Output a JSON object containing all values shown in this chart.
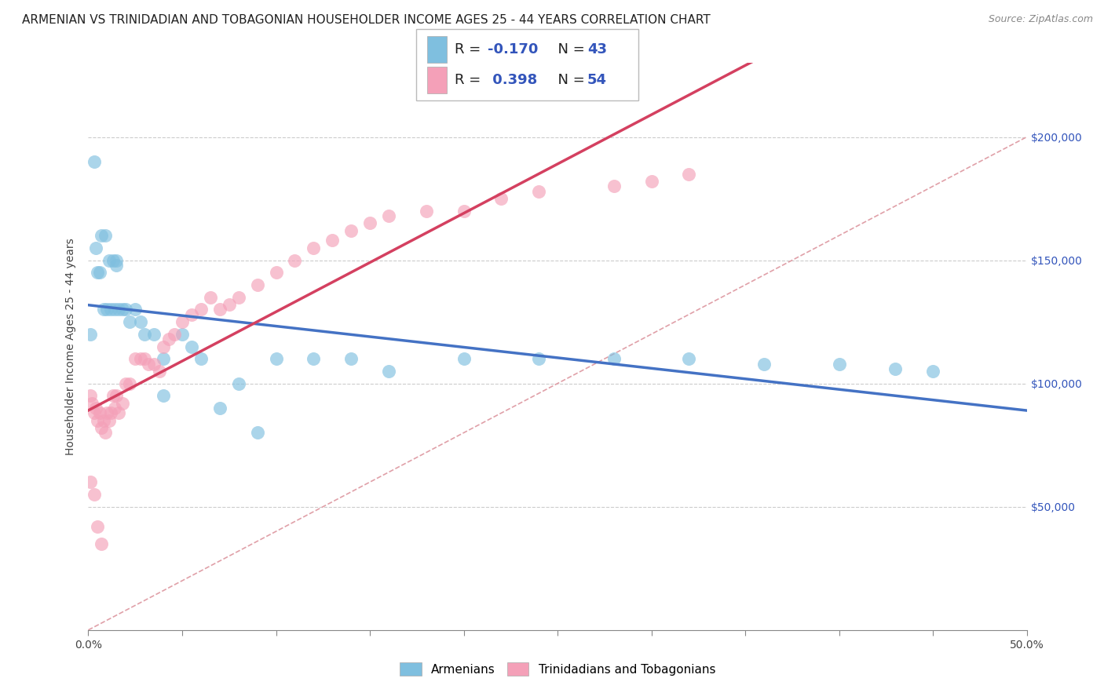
{
  "title": "ARMENIAN VS TRINIDADIAN AND TOBAGONIAN HOUSEHOLDER INCOME AGES 25 - 44 YEARS CORRELATION CHART",
  "source": "Source: ZipAtlas.com",
  "ylabel": "Householder Income Ages 25 - 44 years",
  "xlim": [
    0.0,
    0.5
  ],
  "ylim": [
    0,
    230000
  ],
  "yticks": [
    0,
    50000,
    100000,
    150000,
    200000
  ],
  "ytick_labels": [
    "",
    "$50,000",
    "$100,000",
    "$150,000",
    "$200,000"
  ],
  "xticks": [
    0.0,
    0.05,
    0.1,
    0.15,
    0.2,
    0.25,
    0.3,
    0.35,
    0.4,
    0.45,
    0.5
  ],
  "xtick_labels_show": [
    "0.0%",
    "",
    "",
    "",
    "",
    "",
    "",
    "",
    "",
    "",
    "50.0%"
  ],
  "color_armenian": "#7fbfdf",
  "color_trinidadian": "#f4a0b8",
  "color_line_armenian": "#4472c4",
  "color_line_trinidadian": "#d44060",
  "color_diagonal": "#e0a0a8",
  "background_color": "#ffffff",
  "grid_color": "#cccccc",
  "armenian_x": [
    0.001,
    0.003,
    0.004,
    0.005,
    0.006,
    0.007,
    0.008,
    0.009,
    0.01,
    0.011,
    0.012,
    0.013,
    0.014,
    0.015,
    0.015,
    0.016,
    0.018,
    0.02,
    0.022,
    0.025,
    0.028,
    0.03,
    0.035,
    0.04,
    0.05,
    0.06,
    0.08,
    0.1,
    0.12,
    0.14,
    0.16,
    0.2,
    0.24,
    0.28,
    0.32,
    0.36,
    0.4,
    0.43,
    0.45,
    0.04,
    0.055,
    0.07,
    0.09
  ],
  "armenian_y": [
    120000,
    190000,
    155000,
    145000,
    145000,
    160000,
    130000,
    160000,
    130000,
    150000,
    130000,
    150000,
    130000,
    150000,
    148000,
    130000,
    130000,
    130000,
    125000,
    130000,
    125000,
    120000,
    120000,
    110000,
    120000,
    110000,
    100000,
    110000,
    110000,
    110000,
    105000,
    110000,
    110000,
    110000,
    110000,
    108000,
    108000,
    106000,
    105000,
    95000,
    115000,
    90000,
    80000
  ],
  "trinidadian_x": [
    0.001,
    0.002,
    0.003,
    0.004,
    0.005,
    0.006,
    0.007,
    0.008,
    0.009,
    0.01,
    0.011,
    0.012,
    0.013,
    0.014,
    0.015,
    0.016,
    0.018,
    0.02,
    0.022,
    0.025,
    0.028,
    0.03,
    0.032,
    0.035,
    0.038,
    0.04,
    0.043,
    0.046,
    0.05,
    0.055,
    0.06,
    0.065,
    0.07,
    0.075,
    0.08,
    0.09,
    0.1,
    0.11,
    0.12,
    0.13,
    0.14,
    0.15,
    0.16,
    0.18,
    0.2,
    0.22,
    0.24,
    0.28,
    0.3,
    0.32,
    0.001,
    0.003,
    0.005,
    0.007
  ],
  "trinidadian_y": [
    95000,
    92000,
    88000,
    90000,
    85000,
    88000,
    82000,
    85000,
    80000,
    88000,
    85000,
    88000,
    95000,
    90000,
    95000,
    88000,
    92000,
    100000,
    100000,
    110000,
    110000,
    110000,
    108000,
    108000,
    105000,
    115000,
    118000,
    120000,
    125000,
    128000,
    130000,
    135000,
    130000,
    132000,
    135000,
    140000,
    145000,
    150000,
    155000,
    158000,
    162000,
    165000,
    168000,
    170000,
    170000,
    175000,
    178000,
    180000,
    182000,
    185000,
    60000,
    55000,
    42000,
    35000
  ],
  "title_fontsize": 11,
  "source_fontsize": 9,
  "axis_label_fontsize": 10,
  "tick_fontsize": 10,
  "legend_fontsize": 13
}
